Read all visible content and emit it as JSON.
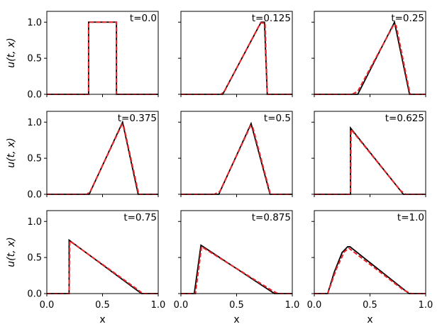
{
  "chart_data": {
    "type": "line",
    "layout": "3x3 grid of line plots",
    "xlabel": "x",
    "ylabel": "u(t, x)",
    "xlim": [
      0,
      1
    ],
    "ylim": [
      0,
      1.15
    ],
    "xticks": [
      "0.0",
      "0.5",
      "1.0"
    ],
    "yticks": [
      "0.0",
      "0.5",
      "1.0"
    ],
    "grid": false,
    "series_styles": [
      {
        "role": "exact",
        "color": "#000000",
        "style": "solid"
      },
      {
        "role": "approx",
        "color": "#e8262a",
        "style": "dashed"
      }
    ],
    "panels": [
      {
        "label": "t=0.0",
        "exact": [
          [
            0,
            0
          ],
          [
            0.375,
            0
          ],
          [
            0.375,
            1
          ],
          [
            0.625,
            1
          ],
          [
            0.625,
            0
          ],
          [
            1,
            0
          ]
        ],
        "approx": [
          [
            0,
            0
          ],
          [
            0.375,
            0
          ],
          [
            0.375,
            1
          ],
          [
            0.625,
            1
          ],
          [
            0.625,
            0
          ],
          [
            1,
            0
          ]
        ]
      },
      {
        "label": "t=0.125",
        "exact": [
          [
            0,
            0
          ],
          [
            0.375,
            0
          ],
          [
            0.72,
            1
          ],
          [
            0.75,
            1
          ],
          [
            0.775,
            0
          ],
          [
            1,
            0
          ]
        ],
        "approx": [
          [
            0,
            0
          ],
          [
            0.36,
            0
          ],
          [
            0.39,
            0.04
          ],
          [
            0.715,
            0.99
          ],
          [
            0.755,
            0.99
          ],
          [
            0.775,
            0
          ],
          [
            1,
            0
          ]
        ]
      },
      {
        "label": "t=0.25",
        "exact": [
          [
            0,
            0
          ],
          [
            0.39,
            0
          ],
          [
            0.72,
            1
          ],
          [
            0.855,
            0
          ],
          [
            1,
            0
          ]
        ],
        "approx": [
          [
            0,
            0
          ],
          [
            0.34,
            0
          ],
          [
            0.39,
            0.04
          ],
          [
            0.715,
            0.97
          ],
          [
            0.735,
            0.95
          ],
          [
            0.86,
            0
          ],
          [
            1,
            0
          ]
        ]
      },
      {
        "label": "t=0.375",
        "exact": [
          [
            0,
            0
          ],
          [
            0.38,
            0
          ],
          [
            0.68,
            1
          ],
          [
            0.82,
            0
          ],
          [
            1,
            0
          ]
        ],
        "approx": [
          [
            0,
            0
          ],
          [
            0.36,
            0
          ],
          [
            0.39,
            0.04
          ],
          [
            0.675,
            0.97
          ],
          [
            0.69,
            0.95
          ],
          [
            0.825,
            0
          ],
          [
            1,
            0
          ]
        ]
      },
      {
        "label": "t=0.5",
        "exact": [
          [
            0,
            0
          ],
          [
            0.34,
            0
          ],
          [
            0.63,
            0.98
          ],
          [
            0.8,
            0
          ],
          [
            1,
            0
          ]
        ],
        "approx": [
          [
            0,
            0
          ],
          [
            0.3,
            0
          ],
          [
            0.35,
            0.04
          ],
          [
            0.625,
            0.95
          ],
          [
            0.645,
            0.93
          ],
          [
            0.8,
            0.02
          ],
          [
            0.82,
            0
          ],
          [
            1,
            0
          ]
        ]
      },
      {
        "label": "t=0.625",
        "exact": [
          [
            0,
            0
          ],
          [
            0.325,
            0
          ],
          [
            0.325,
            0.92
          ],
          [
            0.8,
            0
          ],
          [
            1,
            0
          ]
        ],
        "approx": [
          [
            0,
            0
          ],
          [
            0.325,
            0
          ],
          [
            0.33,
            0.9
          ],
          [
            0.775,
            0.05
          ],
          [
            0.82,
            0
          ],
          [
            1,
            0
          ]
        ]
      },
      {
        "label": "t=0.75",
        "exact": [
          [
            0,
            0
          ],
          [
            0.2,
            0
          ],
          [
            0.2,
            0.74
          ],
          [
            0.85,
            0
          ],
          [
            1,
            0
          ]
        ],
        "approx": [
          [
            0,
            0
          ],
          [
            0.2,
            0
          ],
          [
            0.205,
            0.73
          ],
          [
            0.82,
            0.05
          ],
          [
            0.86,
            0
          ],
          [
            1,
            0
          ]
        ]
      },
      {
        "label": "t=0.875",
        "exact": [
          [
            0,
            0
          ],
          [
            0.12,
            0
          ],
          [
            0.18,
            0.67
          ],
          [
            0.84,
            0
          ],
          [
            1,
            0
          ]
        ],
        "approx": [
          [
            0,
            0
          ],
          [
            0.13,
            0
          ],
          [
            0.185,
            0.65
          ],
          [
            0.82,
            0.04
          ],
          [
            0.87,
            0
          ],
          [
            1,
            0
          ]
        ]
      },
      {
        "label": "t=1.0",
        "exact": [
          [
            0,
            0
          ],
          [
            0.12,
            0
          ],
          [
            0.18,
            0.3
          ],
          [
            0.25,
            0.57
          ],
          [
            0.3,
            0.65
          ],
          [
            0.32,
            0.65
          ],
          [
            0.85,
            0
          ],
          [
            1,
            0
          ]
        ],
        "approx": [
          [
            0,
            0
          ],
          [
            0.12,
            0
          ],
          [
            0.2,
            0.35
          ],
          [
            0.27,
            0.58
          ],
          [
            0.31,
            0.63
          ],
          [
            0.8,
            0.05
          ],
          [
            0.87,
            0
          ],
          [
            1,
            0
          ]
        ]
      }
    ]
  }
}
